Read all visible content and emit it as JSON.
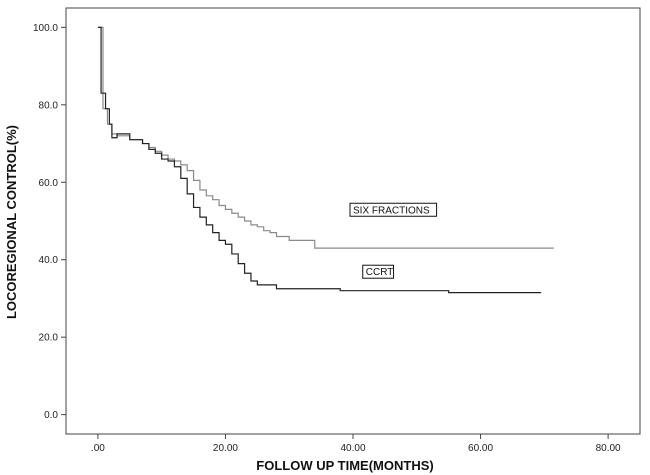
{
  "chart_data": {
    "type": "line",
    "title": "",
    "xlabel": "FOLLOW UP TIME(MONTHS)",
    "ylabel": "LOCOREGIONAL CONTROL(%)",
    "xlim": [
      -5,
      85
    ],
    "ylim": [
      -5,
      105
    ],
    "xticks": [
      0,
      20,
      40,
      60,
      80
    ],
    "xtick_labels": [
      ".00",
      "20.00",
      "40.00",
      "60.00",
      "80.00"
    ],
    "yticks": [
      0,
      20,
      40,
      60,
      80,
      100
    ],
    "ytick_labels": [
      "0.0",
      "20.0",
      "40.0",
      "60.0",
      "80.0",
      "100.0"
    ],
    "grid": false,
    "legend": "none",
    "colors": {
      "six_fractions": "#8a8a8a",
      "ccrt": "#222222"
    },
    "series": [
      {
        "name": "SIX FRACTIONS",
        "step": true,
        "x": [
          0,
          0.8,
          1.5,
          2.2,
          3,
          5,
          7,
          8,
          9,
          10,
          11,
          12,
          13,
          14,
          15,
          16,
          17,
          18,
          19,
          20,
          21,
          22,
          23,
          24,
          25,
          26,
          27,
          28,
          30,
          34,
          36,
          40,
          50,
          60,
          70,
          71.5
        ],
        "y": [
          100,
          79,
          75,
          72.5,
          72,
          71,
          70,
          69,
          68,
          67,
          66,
          65.5,
          64.5,
          63,
          60.5,
          58,
          56.5,
          55.5,
          54,
          53,
          52,
          51,
          50,
          49,
          48.5,
          47.5,
          47,
          46,
          45,
          43,
          43,
          43,
          43,
          43,
          43,
          43
        ],
        "annotation": "SIX FRACTIONS"
      },
      {
        "name": "CCRT",
        "step": true,
        "x": [
          0,
          0.5,
          1.2,
          1.8,
          2.2,
          3,
          5,
          7,
          8,
          9,
          10,
          11,
          12,
          13,
          14,
          15,
          16,
          17,
          18,
          19,
          20,
          21,
          22,
          23,
          24,
          25,
          26,
          28,
          30,
          35,
          38,
          45,
          55,
          69.5
        ],
        "y": [
          100,
          83,
          79,
          75,
          71.5,
          72.5,
          71,
          70,
          68.5,
          67.5,
          66,
          65.5,
          64,
          61,
          57,
          53.5,
          51,
          49,
          47,
          45,
          44,
          41.5,
          39,
          36.5,
          34.5,
          33.5,
          33.5,
          32.5,
          32.5,
          32.5,
          32,
          32,
          31.5,
          31.5
        ],
        "annotation": "CCRT"
      }
    ],
    "annotations": [
      {
        "text": "SIX FRACTIONS",
        "x": 40,
        "y": 52
      },
      {
        "text": "CCRT",
        "x": 42,
        "y": 36
      }
    ]
  }
}
